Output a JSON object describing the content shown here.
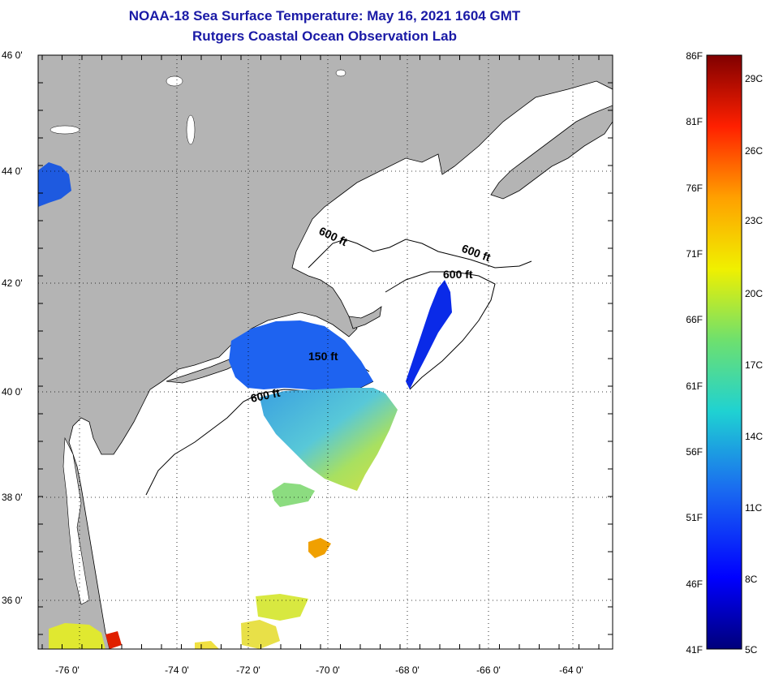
{
  "title": {
    "line1": "NOAA-18 Sea Surface Temperature:  May 16, 2021 1604 GMT",
    "line2": "Rutgers Coastal Ocean Observation Lab"
  },
  "map": {
    "lat_labels": [
      "46 0'",
      "44 0'",
      "42 0'",
      "40 0'",
      "38 0'",
      "36 0'"
    ],
    "lon_labels": [
      "-76 0'",
      "-74 0'",
      "-72 0'",
      "-70 0'",
      "-68 0'",
      "-66 0'",
      "-64 0'"
    ],
    "contour_labels": [
      "600 ft",
      "600 ft",
      "600 ft",
      "150 ft",
      "600 ft"
    ],
    "colors": {
      "land": "#b4b4b4",
      "sea": "#ffffff",
      "grid": "#000000"
    }
  },
  "colorbar": {
    "fahrenheit": [
      "86F",
      "81F",
      "76F",
      "71F",
      "66F",
      "61F",
      "56F",
      "51F",
      "46F",
      "41F"
    ],
    "celsius": [
      "29C",
      "26C",
      "23C",
      "20C",
      "17C",
      "14C",
      "11C",
      "8C",
      "5C"
    ],
    "colors": [
      "#00007a",
      "#0000ff",
      "#1a6cf0",
      "#1fd2d2",
      "#6ee06e",
      "#f0f000",
      "#ffa000",
      "#ff2000",
      "#800000"
    ]
  }
}
